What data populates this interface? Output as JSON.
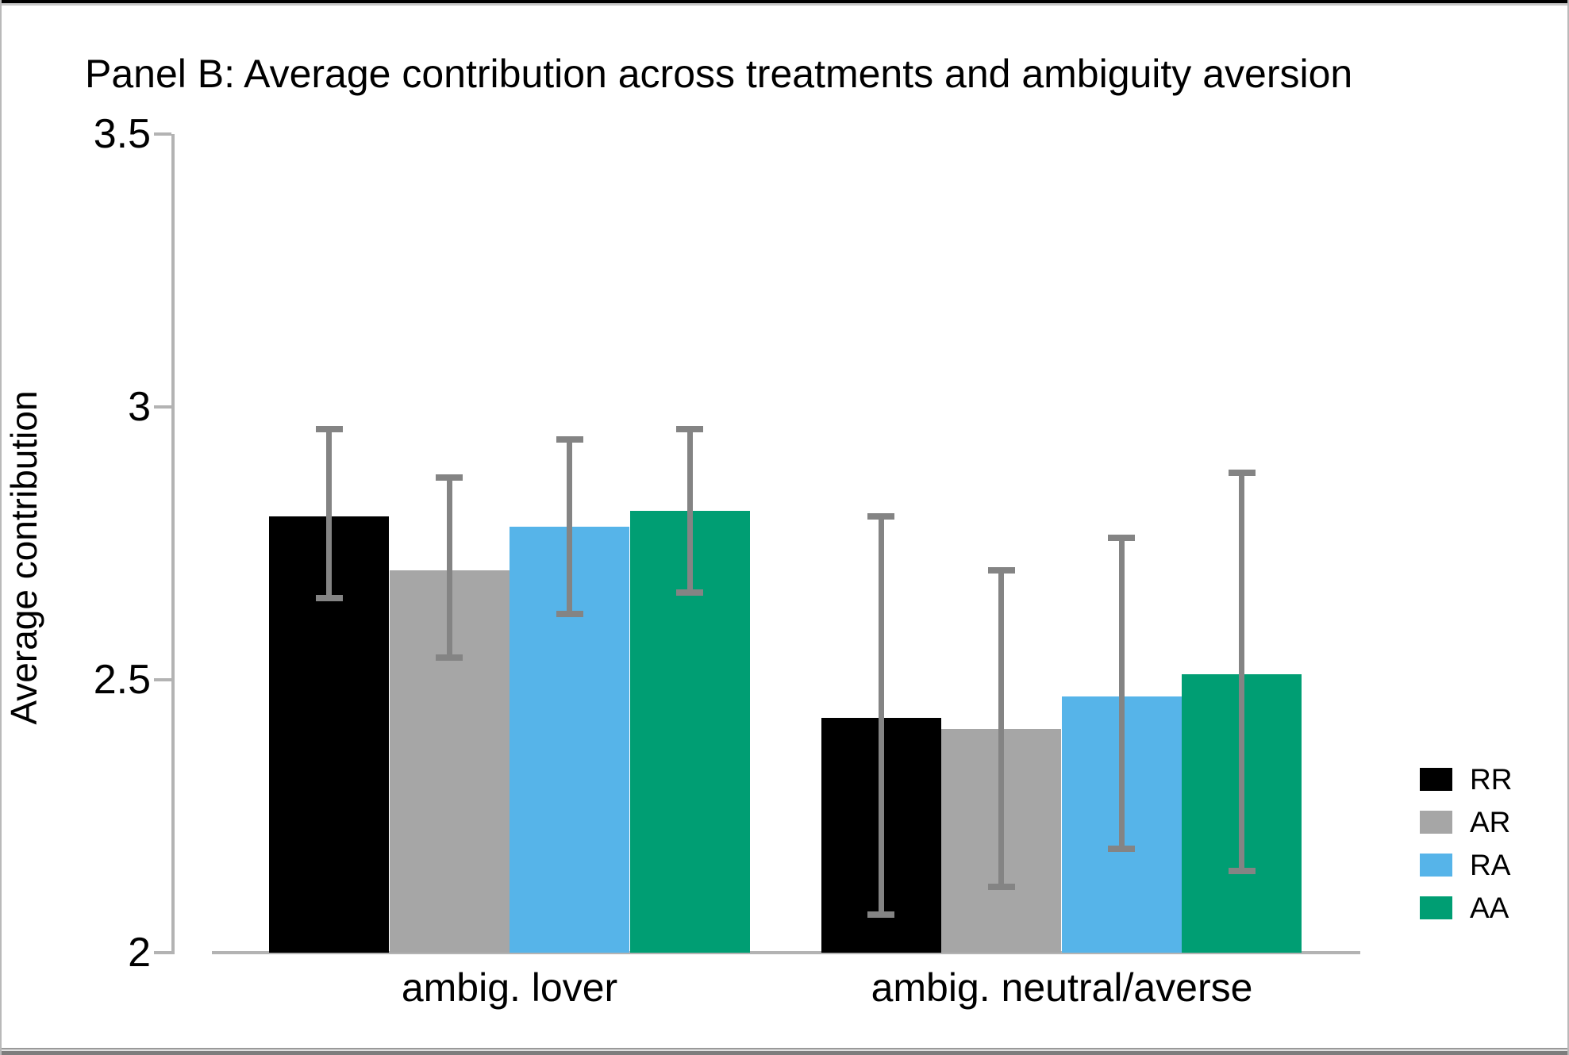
{
  "window": {
    "top_border_color": "#000000",
    "bottom_border_color": "#7d7d7d",
    "background": "#ffffff"
  },
  "chart_data": {
    "type": "bar",
    "title": "Panel B: Average contribution across treatments and ambiguity aversion",
    "xlabel": "",
    "ylabel": "Average contribution",
    "categories": [
      "ambig. lover",
      "ambig. neutral/averse"
    ],
    "series": [
      {
        "name": "RR",
        "color": "#000000",
        "values": [
          2.8,
          2.43
        ],
        "err_high": [
          2.96,
          2.8
        ],
        "err_low": [
          2.65,
          2.07
        ]
      },
      {
        "name": "AR",
        "color": "#a6a6a6",
        "values": [
          2.7,
          2.41
        ],
        "err_high": [
          2.87,
          2.7
        ],
        "err_low": [
          2.54,
          2.12
        ]
      },
      {
        "name": "RA",
        "color": "#56b4e9",
        "values": [
          2.78,
          2.47
        ],
        "err_high": [
          2.94,
          2.76
        ],
        "err_low": [
          2.62,
          2.19
        ]
      },
      {
        "name": "AA",
        "color": "#009e73",
        "values": [
          2.81,
          2.51
        ],
        "err_high": [
          2.96,
          2.88
        ],
        "err_low": [
          2.66,
          2.15
        ]
      }
    ],
    "ylim": [
      2,
      3.5
    ],
    "y_ticks": [
      2,
      2.5,
      3,
      3.5
    ],
    "y_tick_labels": [
      "2",
      "2.5",
      "3",
      "3.5"
    ],
    "grid": false,
    "legend_position": "right",
    "error_bars": true,
    "colors": {
      "axis": "#b3b3b3",
      "error_bar": "#848484",
      "text": "#000000"
    }
  }
}
